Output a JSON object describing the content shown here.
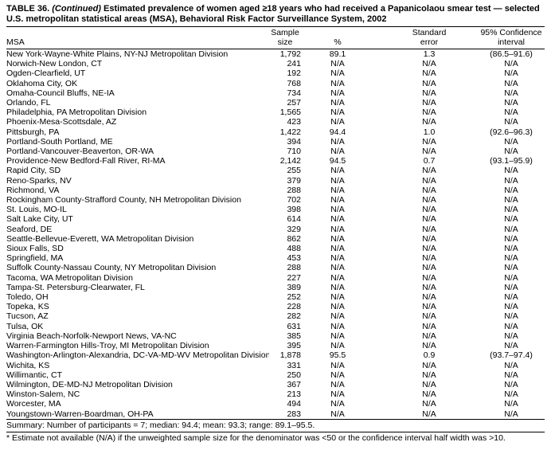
{
  "title": {
    "label": "TABLE 36.",
    "continued": "(Continued)",
    "text": "Estimated prevalence of women aged ≥18 years who had received a Papanicolaou smear test — selected U.S. metropolitan statistical areas (MSA), Behavioral Risk Factor Surveillance System, 2002"
  },
  "table": {
    "columns": [
      {
        "line1": "",
        "line2": "MSA"
      },
      {
        "line1": "Sample",
        "line2": "size"
      },
      {
        "line1": "",
        "line2": "%"
      },
      {
        "line1": "Standard",
        "line2": "error"
      },
      {
        "line1": "95% Confidence",
        "line2": "interval"
      }
    ],
    "rows": [
      {
        "msa": "New York-Wayne-White Plains, NY-NJ Metropolitan Division",
        "n": "1,792",
        "pct": "89.1",
        "se": "1.3",
        "ci": "(86.5–91.6)"
      },
      {
        "msa": "Norwich-New London, CT",
        "n": "241",
        "pct": "N/A",
        "se": "N/A",
        "ci": "N/A"
      },
      {
        "msa": "Ogden-Clearfield, UT",
        "n": "192",
        "pct": "N/A",
        "se": "N/A",
        "ci": "N/A"
      },
      {
        "msa": "Oklahoma City, OK",
        "n": "768",
        "pct": "N/A",
        "se": "N/A",
        "ci": "N/A"
      },
      {
        "msa": "Omaha-Council Bluffs, NE-IA",
        "n": "734",
        "pct": "N/A",
        "se": "N/A",
        "ci": "N/A"
      },
      {
        "msa": "Orlando, FL",
        "n": "257",
        "pct": "N/A",
        "se": "N/A",
        "ci": "N/A"
      },
      {
        "msa": "Philadelphia, PA Metropolitan Division",
        "n": "1,565",
        "pct": "N/A",
        "se": "N/A",
        "ci": "N/A"
      },
      {
        "msa": "Phoenix-Mesa-Scottsdale, AZ",
        "n": "423",
        "pct": "N/A",
        "se": "N/A",
        "ci": "N/A"
      },
      {
        "msa": "Pittsburgh, PA",
        "n": "1,422",
        "pct": "94.4",
        "se": "1.0",
        "ci": "(92.6–96.3)"
      },
      {
        "msa": "Portland-South Portland, ME",
        "n": "394",
        "pct": "N/A",
        "se": "N/A",
        "ci": "N/A"
      },
      {
        "msa": "Portland-Vancouver-Beaverton, OR-WA",
        "n": "710",
        "pct": "N/A",
        "se": "N/A",
        "ci": "N/A"
      },
      {
        "msa": "Providence-New Bedford-Fall River, RI-MA",
        "n": "2,142",
        "pct": "94.5",
        "se": "0.7",
        "ci": "(93.1–95.9)"
      },
      {
        "msa": "Rapid City, SD",
        "n": "255",
        "pct": "N/A",
        "se": "N/A",
        "ci": "N/A"
      },
      {
        "msa": "Reno-Sparks, NV",
        "n": "379",
        "pct": "N/A",
        "se": "N/A",
        "ci": "N/A"
      },
      {
        "msa": "Richmond, VA",
        "n": "288",
        "pct": "N/A",
        "se": "N/A",
        "ci": "N/A"
      },
      {
        "msa": "Rockingham County-Strafford County, NH Metropolitan Division",
        "n": "702",
        "pct": "N/A",
        "se": "N/A",
        "ci": "N/A"
      },
      {
        "msa": "St. Louis, MO-IL",
        "n": "398",
        "pct": "N/A",
        "se": "N/A",
        "ci": "N/A"
      },
      {
        "msa": "Salt Lake City, UT",
        "n": "614",
        "pct": "N/A",
        "se": "N/A",
        "ci": "N/A"
      },
      {
        "msa": "Seaford, DE",
        "n": "329",
        "pct": "N/A",
        "se": "N/A",
        "ci": "N/A"
      },
      {
        "msa": "Seattle-Bellevue-Everett, WA Metropolitan Division",
        "n": "862",
        "pct": "N/A",
        "se": "N/A",
        "ci": "N/A"
      },
      {
        "msa": "Sioux Falls, SD",
        "n": "488",
        "pct": "N/A",
        "se": "N/A",
        "ci": "N/A"
      },
      {
        "msa": "Springfield, MA",
        "n": "453",
        "pct": "N/A",
        "se": "N/A",
        "ci": "N/A"
      },
      {
        "msa": "Suffolk County-Nassau County, NY Metropolitan Division",
        "n": "288",
        "pct": "N/A",
        "se": "N/A",
        "ci": "N/A"
      },
      {
        "msa": "Tacoma, WA Metropolitan Division",
        "n": "227",
        "pct": "N/A",
        "se": "N/A",
        "ci": "N/A"
      },
      {
        "msa": "Tampa-St. Petersburg-Clearwater, FL",
        "n": "389",
        "pct": "N/A",
        "se": "N/A",
        "ci": "N/A"
      },
      {
        "msa": "Toledo, OH",
        "n": "252",
        "pct": "N/A",
        "se": "N/A",
        "ci": "N/A"
      },
      {
        "msa": "Topeka, KS",
        "n": "228",
        "pct": "N/A",
        "se": "N/A",
        "ci": "N/A"
      },
      {
        "msa": "Tucson, AZ",
        "n": "282",
        "pct": "N/A",
        "se": "N/A",
        "ci": "N/A"
      },
      {
        "msa": "Tulsa, OK",
        "n": "631",
        "pct": "N/A",
        "se": "N/A",
        "ci": "N/A"
      },
      {
        "msa": "Virginia Beach-Norfolk-Newport News, VA-NC",
        "n": "385",
        "pct": "N/A",
        "se": "N/A",
        "ci": "N/A"
      },
      {
        "msa": "Warren-Farmington Hills-Troy, MI Metropolitan Division",
        "n": "395",
        "pct": "N/A",
        "se": "N/A",
        "ci": "N/A"
      },
      {
        "msa": "Washington-Arlington-Alexandria, DC-VA-MD-WV Metropolitan Division",
        "n": "1,878",
        "pct": "95.5",
        "se": "0.9",
        "ci": "(93.7–97.4)"
      },
      {
        "msa": "Wichita, KS",
        "n": "331",
        "pct": "N/A",
        "se": "N/A",
        "ci": "N/A"
      },
      {
        "msa": "Willimantic, CT",
        "n": "250",
        "pct": "N/A",
        "se": "N/A",
        "ci": "N/A"
      },
      {
        "msa": "Wilmington, DE-MD-NJ Metropolitan Division",
        "n": "367",
        "pct": "N/A",
        "se": "N/A",
        "ci": "N/A"
      },
      {
        "msa": "Winston-Salem, NC",
        "n": "213",
        "pct": "N/A",
        "se": "N/A",
        "ci": "N/A"
      },
      {
        "msa": "Worcester, MA",
        "n": "494",
        "pct": "N/A",
        "se": "N/A",
        "ci": "N/A"
      },
      {
        "msa": "Youngstown-Warren-Boardman, OH-PA",
        "n": "283",
        "pct": "N/A",
        "se": "N/A",
        "ci": "N/A"
      }
    ],
    "summary": "Summary: Number of participants = 7; median: 94.4; mean: 93.3; range: 89.1–95.5.",
    "footnote": "* Estimate not available (N/A) if the unweighted sample size for the denominator was <50 or the confidence interval half width was >10."
  }
}
